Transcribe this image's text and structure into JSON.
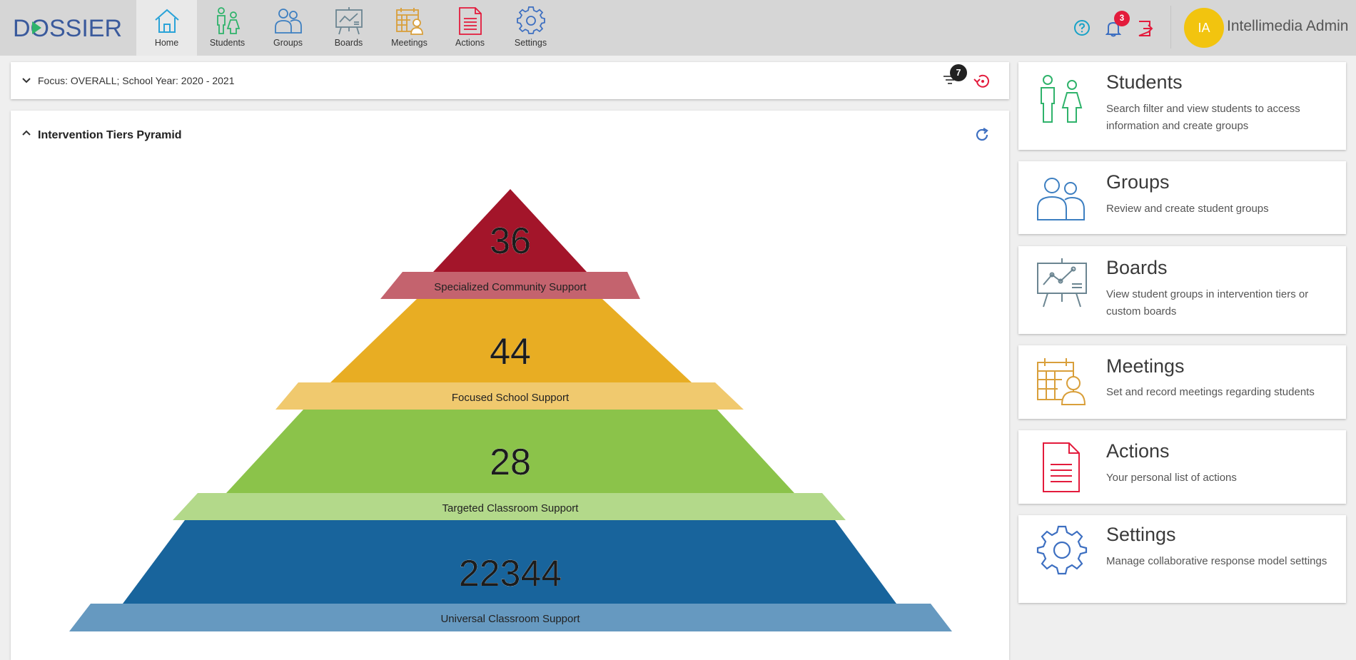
{
  "app": {
    "logo_text": "DOSSIER"
  },
  "nav": [
    {
      "label": "Home",
      "icon": "home-icon"
    },
    {
      "label": "Students",
      "icon": "students-icon"
    },
    {
      "label": "Groups",
      "icon": "groups-icon"
    },
    {
      "label": "Boards",
      "icon": "boards-icon"
    },
    {
      "label": "Meetings",
      "icon": "meetings-icon"
    },
    {
      "label": "Actions",
      "icon": "actions-icon"
    },
    {
      "label": "Settings",
      "icon": "settings-icon"
    }
  ],
  "topbar": {
    "notification_count": "3",
    "avatar_initials": "IA",
    "user_name": "Intellimedia Admin"
  },
  "focus": {
    "text": "Focus: OVERALL; School Year: 2020 - 2021",
    "filter_count": "7"
  },
  "pyramid": {
    "title": "Intervention Tiers Pyramid",
    "tiers": [
      {
        "count": "36",
        "label": "Specialized Community Support",
        "color": "#a3152a",
        "band_color": "#c4636e"
      },
      {
        "count": "44",
        "label": "Focused School Support",
        "color": "#e8ad23",
        "band_color": "#f0c96e"
      },
      {
        "count": "28",
        "label": "Targeted Classroom Support",
        "color": "#8bc34a",
        "band_color": "#b3d98a"
      },
      {
        "count": "22344",
        "label": "Universal Classroom Support",
        "color": "#18649c",
        "band_color": "#6699c0"
      }
    ]
  },
  "cards": [
    {
      "title": "Students",
      "desc": "Search filter and view students to access information and create groups",
      "icon": "students-icon"
    },
    {
      "title": "Groups",
      "desc": "Review and create student groups",
      "icon": "groups-icon"
    },
    {
      "title": "Boards",
      "desc": "View student groups in intervention tiers or custom boards",
      "icon": "boards-icon"
    },
    {
      "title": "Meetings",
      "desc": "Set and record meetings regarding students",
      "icon": "meetings-icon"
    },
    {
      "title": "Actions",
      "desc": "Your personal list of actions",
      "icon": "actions-icon"
    },
    {
      "title": "Settings",
      "desc": "Manage collaborative response model settings",
      "icon": "settings-icon"
    }
  ]
}
